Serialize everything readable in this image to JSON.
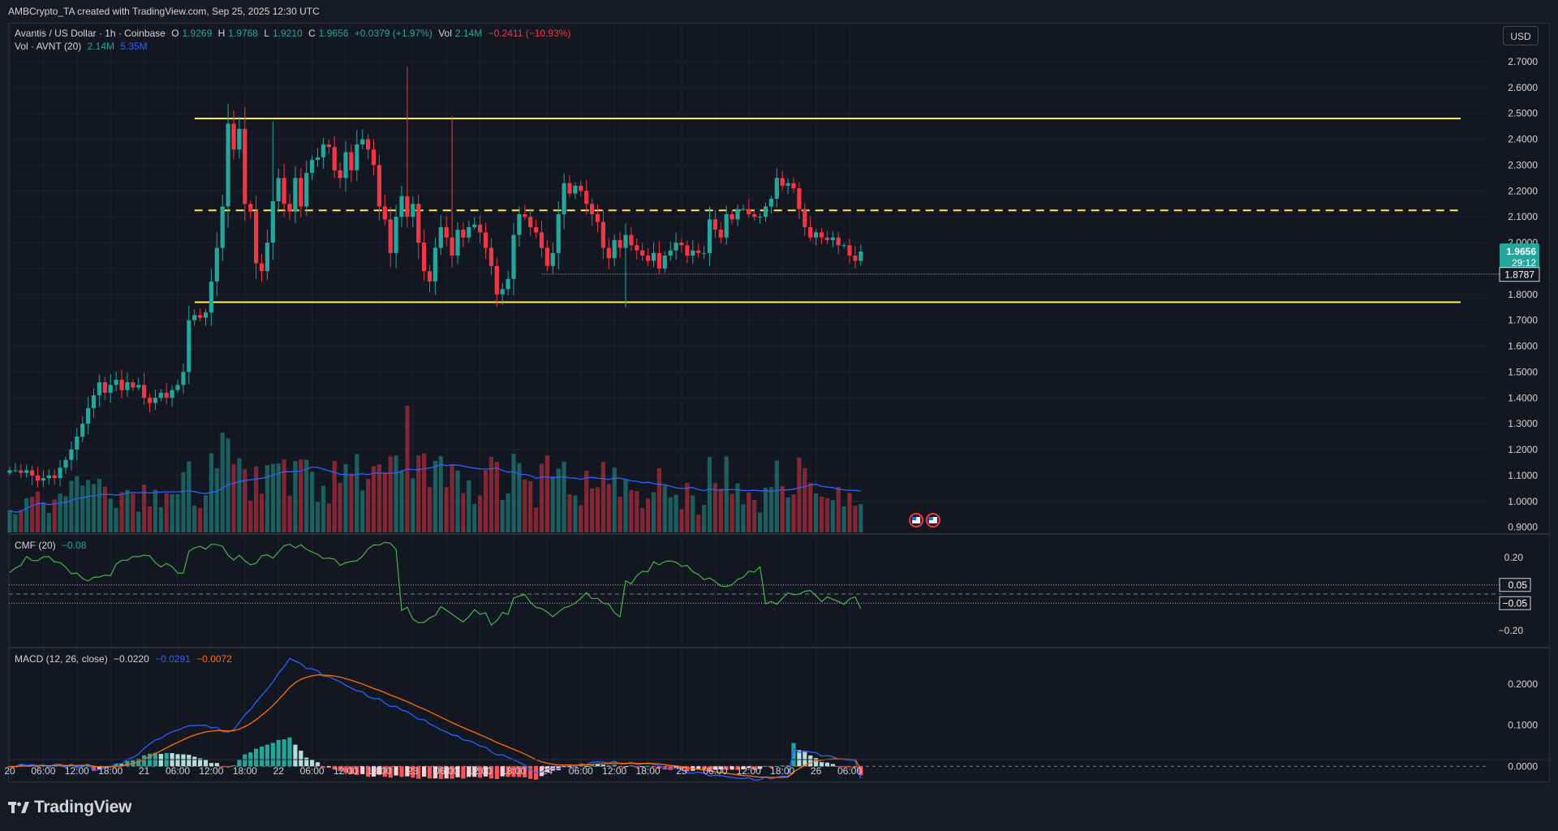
{
  "header": {
    "attribution": "AMBCrypto_TA created with TradingView.com, Sep 25, 2025 12:30 UTC"
  },
  "main_legend": {
    "symbol": "Avantis / US Dollar · 1h · Coinbase",
    "o_label": "O",
    "o_value": "1.9269",
    "h_label": "H",
    "h_value": "1.9768",
    "l_label": "L",
    "l_value": "1.9210",
    "c_label": "C",
    "c_value": "1.9656",
    "change": "+0.0379 (+1.97%)",
    "vol_label": "Vol",
    "vol_value": "2.14M",
    "extra": "−0.2411 (−10.93%)"
  },
  "vol_legend": {
    "label": "Vol · AVNT (20)",
    "v1": "2.14M",
    "v2": "5.35M"
  },
  "cmf_legend": {
    "label": "CMF (20)",
    "v1": "−0.08"
  },
  "macd_legend": {
    "label": "MACD (12, 26, close)",
    "v1": "−0.0220",
    "v2": "−0.0291",
    "v3": "−0.0072"
  },
  "currency_button": "USD",
  "price_tags": {
    "last": "1.9656",
    "countdown": "29:12",
    "line": "1.8787"
  },
  "cmf_tags": {
    "upper": "0.05",
    "lower": "−0.05"
  },
  "footer": {
    "brand": "TradingView"
  },
  "colors": {
    "up": "#26a69a",
    "down": "#f23645",
    "level": "#ffeb3b",
    "ma": "#2962ff",
    "macd": "#2962ff",
    "signal": "#ff6d00",
    "cmf": "#4caf50"
  },
  "chart_data": [
    {
      "type": "candlestick",
      "interval": "1h",
      "x_ticks": [
        "20",
        "06:00",
        "12:00",
        "18:00",
        "21",
        "06:00",
        "12:00",
        "18:00",
        "22",
        "06:00",
        "12:00",
        "18:00",
        "23",
        "06:00",
        "12:00",
        "18:00",
        "24",
        "06:00",
        "12:00",
        "18:00",
        "25",
        "06:00",
        "12:00",
        "18:00",
        "26",
        "06:00"
      ],
      "x_tick_hours": [
        0,
        6,
        12,
        18,
        24,
        30,
        36,
        42,
        48,
        54,
        60,
        66,
        72,
        78,
        84,
        90,
        96,
        102,
        108,
        114,
        120,
        126,
        132,
        138,
        144,
        150
      ],
      "y_ticks": [
        "2.7000",
        "2.6000",
        "2.5000",
        "2.4000",
        "2.3000",
        "2.2000",
        "2.1000",
        "2.0000",
        "1.9000",
        "1.8000",
        "1.7000",
        "1.6000",
        "1.5000",
        "1.4000",
        "1.3000",
        "1.2000",
        "1.1000",
        "1.0000",
        "0.9000"
      ],
      "ylim": [
        0.88,
        2.75
      ],
      "levels": {
        "resistance": 2.48,
        "mid": 2.125,
        "support": 1.77,
        "dotted": 1.8787
      },
      "last_close": 1.9656,
      "closes": [
        1.12,
        1.12,
        1.11,
        1.12,
        1.1,
        1.08,
        1.09,
        1.1,
        1.09,
        1.13,
        1.16,
        1.2,
        1.25,
        1.3,
        1.36,
        1.41,
        1.46,
        1.42,
        1.45,
        1.47,
        1.43,
        1.46,
        1.44,
        1.45,
        1.4,
        1.38,
        1.4,
        1.42,
        1.4,
        1.43,
        1.45,
        1.5,
        1.7,
        1.72,
        1.71,
        1.73,
        1.85,
        1.98,
        2.14,
        2.46,
        2.36,
        2.44,
        2.15,
        2.12,
        1.92,
        1.89,
        2.0,
        2.16,
        2.25,
        2.15,
        2.12,
        2.25,
        2.14,
        2.27,
        2.32,
        2.33,
        2.38,
        2.37,
        2.28,
        2.25,
        2.35,
        2.28,
        2.38,
        2.4,
        2.36,
        2.3,
        2.14,
        2.09,
        1.96,
        2.1,
        2.18,
        2.1,
        2.15,
        2.0,
        1.89,
        1.85,
        1.98,
        2.06,
        2.02,
        1.95,
        2.05,
        2.02,
        2.06,
        2.07,
        2.04,
        1.98,
        1.91,
        1.8,
        1.82,
        1.86,
        2.03,
        2.11,
        2.1,
        2.06,
        2.04,
        1.98,
        1.91,
        1.96,
        2.11,
        2.23,
        2.19,
        2.22,
        2.2,
        2.15,
        2.11,
        2.08,
        1.98,
        1.94,
        2.01,
        1.98,
        2.03,
        1.99,
        1.97,
        1.95,
        1.93,
        1.96,
        1.9,
        1.95,
        1.97,
        2.0,
        1.99,
        1.95,
        1.97,
        1.96,
        1.96,
        2.09,
        2.05,
        2.02,
        2.11,
        2.09,
        2.13,
        2.13,
        2.11,
        2.1,
        2.1,
        2.14,
        2.17,
        2.25,
        2.22,
        2.23,
        2.21,
        2.13,
        2.06,
        2.02,
        2.04,
        2.02,
        2.01,
        2.02,
        1.99,
        1.99,
        1.95,
        1.93,
        1.9656
      ],
      "volume": {
        "label": "Vol · AVNT (20)",
        "ylim": [
          0,
          7.6
        ]
      }
    },
    {
      "type": "line",
      "name": "CMF (20)",
      "y_ticks": [
        "0.20",
        "−0.20"
      ],
      "ylim": [
        -0.28,
        0.32
      ],
      "reference_lines": [
        0.05,
        -0.05
      ],
      "last": -0.08
    },
    {
      "type": "line",
      "name": "MACD (12, 26, close)",
      "y_ticks": [
        "0.2000",
        "0.1000",
        "0.0000"
      ],
      "ylim": [
        -0.035,
        0.285
      ],
      "last": {
        "histogram": -0.022,
        "macd": -0.0291,
        "signal": -0.0072
      }
    }
  ]
}
